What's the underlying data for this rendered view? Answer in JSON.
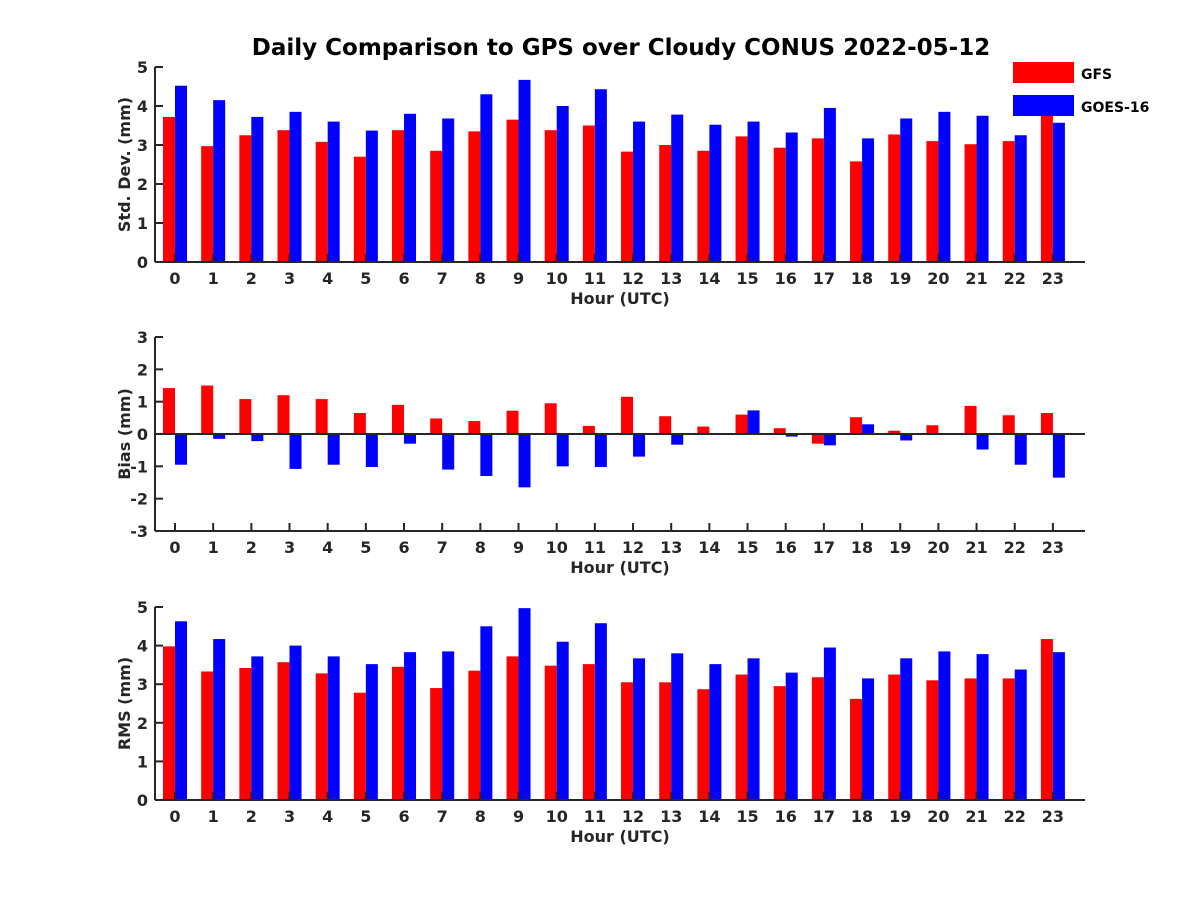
{
  "title": "Daily Comparison to GPS over Cloudy CONUS 2022-05-12",
  "colors": {
    "GFS": "#ff0000",
    "GOES-16": "#0000ff",
    "axis": "#262626"
  },
  "legend": {
    "placement": "top-right",
    "entries": [
      {
        "label": "GFS",
        "color": "#ff0000"
      },
      {
        "label": "GOES-16",
        "color": "#0000ff"
      }
    ]
  },
  "chart_data": [
    {
      "type": "bar",
      "ylabel": "Std. Dev. (mm)",
      "xlabel": "Hour (UTC)",
      "ylim": [
        0,
        5
      ],
      "yticks": [
        "0",
        "1",
        "2",
        "3",
        "4",
        "5"
      ],
      "categories": [
        "0",
        "1",
        "2",
        "3",
        "4",
        "5",
        "6",
        "7",
        "8",
        "9",
        "10",
        "11",
        "12",
        "13",
        "14",
        "15",
        "16",
        "17",
        "18",
        "19",
        "20",
        "21",
        "22",
        "23"
      ],
      "series": [
        {
          "name": "GFS",
          "values": [
            3.72,
            2.97,
            3.25,
            3.38,
            3.08,
            2.7,
            3.38,
            2.85,
            3.35,
            3.65,
            3.38,
            3.5,
            2.83,
            3.0,
            2.85,
            3.22,
            2.93,
            3.17,
            2.58,
            3.27,
            3.1,
            3.02,
            3.1,
            3.95
          ]
        },
        {
          "name": "GOES-16",
          "values": [
            4.52,
            4.15,
            3.72,
            3.85,
            3.6,
            3.37,
            3.8,
            3.68,
            4.3,
            4.67,
            4.0,
            4.43,
            3.6,
            3.78,
            3.52,
            3.6,
            3.32,
            3.95,
            3.17,
            3.68,
            3.85,
            3.75,
            3.25,
            3.57
          ]
        }
      ]
    },
    {
      "type": "bar",
      "ylabel": "Bias (mm)",
      "xlabel": "Hour (UTC)",
      "ylim": [
        -3,
        3
      ],
      "yticks": [
        "-3",
        "-2",
        "-1",
        "0",
        "1",
        "2",
        "3"
      ],
      "categories": [
        "0",
        "1",
        "2",
        "3",
        "4",
        "5",
        "6",
        "7",
        "8",
        "9",
        "10",
        "11",
        "12",
        "13",
        "14",
        "15",
        "16",
        "17",
        "18",
        "19",
        "20",
        "21",
        "22",
        "23"
      ],
      "series": [
        {
          "name": "GFS",
          "values": [
            1.42,
            1.5,
            1.08,
            1.2,
            1.08,
            0.65,
            0.9,
            0.48,
            0.4,
            0.72,
            0.95,
            0.25,
            1.15,
            0.55,
            0.23,
            0.6,
            0.18,
            -0.3,
            0.52,
            0.1,
            0.27,
            0.87,
            0.58,
            0.65
          ]
        },
        {
          "name": "GOES-16",
          "values": [
            -0.95,
            -0.15,
            -0.22,
            -1.08,
            -0.95,
            -1.02,
            -0.3,
            -1.1,
            -1.3,
            -1.65,
            -1.0,
            -1.02,
            -0.7,
            -0.33,
            0.0,
            0.73,
            -0.08,
            -0.35,
            0.3,
            -0.2,
            0.0,
            -0.48,
            -0.95,
            -1.35
          ]
        }
      ]
    },
    {
      "type": "bar",
      "ylabel": "RMS (mm)",
      "xlabel": "Hour (UTC)",
      "ylim": [
        0,
        5
      ],
      "yticks": [
        "0",
        "1",
        "2",
        "3",
        "4",
        "5"
      ],
      "categories": [
        "0",
        "1",
        "2",
        "3",
        "4",
        "5",
        "6",
        "7",
        "8",
        "9",
        "10",
        "11",
        "12",
        "13",
        "14",
        "15",
        "16",
        "17",
        "18",
        "19",
        "20",
        "21",
        "22",
        "23"
      ],
      "series": [
        {
          "name": "GFS",
          "values": [
            3.98,
            3.33,
            3.42,
            3.57,
            3.28,
            2.78,
            3.45,
            2.9,
            3.35,
            3.72,
            3.48,
            3.52,
            3.05,
            3.05,
            2.87,
            3.25,
            2.95,
            3.18,
            2.62,
            3.25,
            3.1,
            3.15,
            3.15,
            4.17
          ]
        },
        {
          "name": "GOES-16",
          "values": [
            4.63,
            4.17,
            3.72,
            4.0,
            3.72,
            3.52,
            3.83,
            3.85,
            4.5,
            4.97,
            4.1,
            4.58,
            3.67,
            3.8,
            3.52,
            3.67,
            3.3,
            3.95,
            3.15,
            3.67,
            3.85,
            3.78,
            3.38,
            3.83
          ]
        }
      ]
    }
  ]
}
